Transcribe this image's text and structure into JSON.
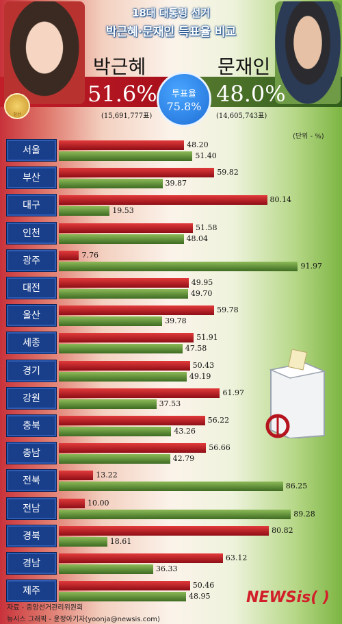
{
  "header": {
    "title_line1": "18대 대통령 선거",
    "title_line2": "박근혜·문재인 득표율 비교"
  },
  "candidates": {
    "park": {
      "name": "박근혜",
      "percent": "51.6%",
      "votes": "(15,691,777표)",
      "color": "#b5141f"
    },
    "moon": {
      "name": "문재인",
      "percent": "48.0%",
      "votes": "(14,605,743표)",
      "color": "#4a7428"
    }
  },
  "turnout": {
    "label": "투표율",
    "value": "75.8%",
    "color": "#2b86ea"
  },
  "seal_text": "당선",
  "unit": "(단위 - %)",
  "chart_data": {
    "type": "bar",
    "orientation": "horizontal",
    "categories": [
      "서울",
      "부산",
      "대구",
      "인천",
      "광주",
      "대전",
      "울산",
      "세종",
      "경기",
      "강원",
      "충북",
      "충남",
      "전북",
      "전남",
      "경북",
      "경남",
      "제주"
    ],
    "series": [
      {
        "key": "park",
        "values": [
          48.2,
          59.82,
          80.14,
          51.58,
          7.76,
          49.95,
          59.78,
          51.91,
          50.43,
          61.97,
          56.22,
          56.66,
          13.22,
          10.0,
          80.82,
          63.12,
          50.46
        ]
      },
      {
        "key": "moon",
        "values": [
          51.4,
          39.87,
          19.53,
          48.04,
          91.97,
          49.7,
          39.78,
          47.58,
          49.19,
          37.53,
          43.26,
          42.79,
          86.25,
          89.28,
          18.61,
          36.33,
          48.95
        ]
      }
    ],
    "xlim": [
      0,
      100
    ],
    "legend": "none",
    "grid": false
  },
  "footer": {
    "source": "자료 - 중앙선거관리위원회",
    "credit": "뉴시스 그래픽 - 윤정아기자(yoonja@newsis.com)",
    "logo": "NEWSis( )"
  }
}
